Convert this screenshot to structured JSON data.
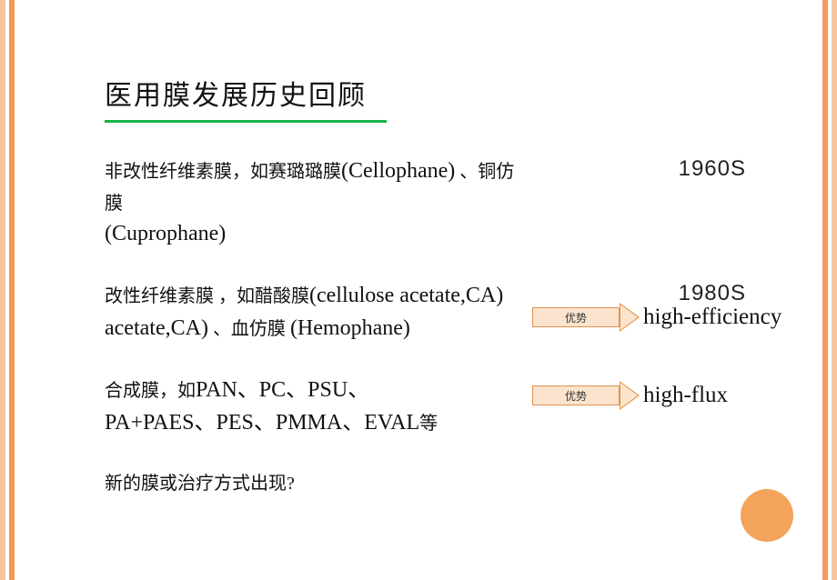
{
  "title": "医用膜发展历史回顾",
  "rows": [
    {
      "text_cn_a": "非改性纤维素膜，如赛璐璐膜",
      "text_en_a": "(Cellophane)",
      "text_cn_b": " 、铜仿膜",
      "text_en_b": "(Cuprophane)",
      "year": "1960S"
    },
    {
      "text_cn_a": "改性纤维素膜 ，如醋酸膜",
      "text_en_a": "(cellulose acetate,CA)",
      "text_cn_b": " 、血仿膜 ",
      "text_en_b": "(Hemophane)",
      "year": "1980S",
      "arrow_label": "优势",
      "result": "high-efficiency"
    },
    {
      "text_cn_a": "合成膜，如",
      "text_en_a": "PAN、PC、PSU、PA+PAES、PES、PMMA、EVAL",
      "text_cn_b": "等",
      "arrow_label": "优势",
      "result": "high-flux"
    }
  ],
  "question": "新的膜或治疗方式出现?",
  "colors": {
    "title_underline": "#18b24a",
    "stripe_outer": "#f7c59e",
    "stripe_inner": "#f19b5b",
    "arrow_fill": "#fbe3cd",
    "arrow_border": "#e09050",
    "corner_dot": "#f4a35a"
  }
}
